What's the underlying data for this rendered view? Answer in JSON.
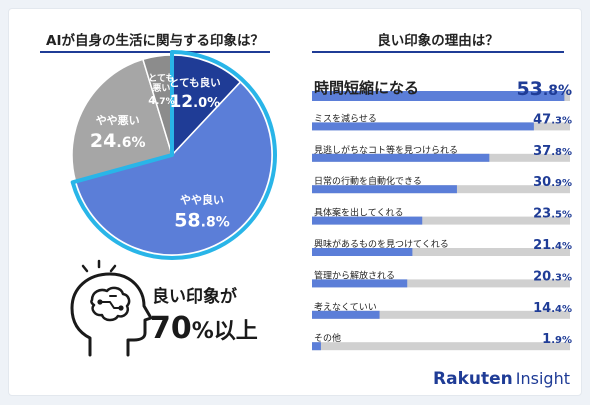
{
  "chart_data": [
    {
      "type": "pie",
      "title": "AIが自身の生活に関与する印象は？",
      "slices": [
        {
          "label": "とても良い",
          "value": 12.0,
          "color": "#1f3c96"
        },
        {
          "label": "やや良い",
          "value": 58.8,
          "color": "#5b7ed8"
        },
        {
          "label": "やや悪い",
          "value": 24.6,
          "color": "#a6a6a6"
        },
        {
          "label": "とても悪い",
          "value": 4.7,
          "color": "#8c8c8c"
        }
      ],
      "slice_label_lines": {
        "とても良い": [
          "とても良い"
        ],
        "やや良い": [
          "やや良い"
        ],
        "やや悪い": [
          "やや悪い"
        ],
        "とても悪い": [
          "とても",
          "悪い"
        ]
      },
      "value_labels": {
        "とても良い": [
          "12",
          ".0",
          "%"
        ],
        "やや良い": [
          "58",
          ".8",
          "%"
        ],
        "やや悪い": [
          "24",
          ".6",
          "%"
        ],
        "とても悪い": [
          "4",
          ".7",
          "%"
        ]
      },
      "highlight_color": "#29b5e8"
    },
    {
      "type": "bar",
      "orientation": "horizontal",
      "title": "良い印象の理由は？",
      "categories": [
        "時間短縮になる",
        "ミスを減らせる",
        "見逃しがちなコト等を見つけられる",
        "日常の行動を自動化できる",
        "具体案を出してくれる",
        "興味があるものを見つけてくれる",
        "管理から解放される",
        "考えなくていい",
        "その他"
      ],
      "values": [
        53.8,
        47.3,
        37.8,
        30.9,
        23.5,
        21.4,
        20.3,
        14.4,
        1.9
      ],
      "value_labels": [
        [
          "53",
          ".8",
          "%"
        ],
        [
          "47",
          ".3",
          "%"
        ],
        [
          "37",
          ".8",
          "%"
        ],
        [
          "30",
          ".9",
          "%"
        ],
        [
          "23",
          ".5",
          "%"
        ],
        [
          "21",
          ".4",
          "%"
        ],
        [
          "20",
          ".3",
          "%"
        ],
        [
          "14",
          ".4",
          "%"
        ],
        [
          "1",
          ".9",
          "%"
        ]
      ],
      "xlim": [
        0,
        55
      ],
      "bar_color": "#5b7ed8",
      "track_color": "#d0d0d0"
    }
  ],
  "callout": {
    "line1": "良い印象が",
    "line2_number": "70",
    "line2_rest": "%以上"
  },
  "brand": {
    "name": "Rakuten",
    "suffix": "Insight",
    "color": "#1f3c96"
  },
  "colors": {
    "accent": "#1f3c96",
    "text": "#222222"
  }
}
